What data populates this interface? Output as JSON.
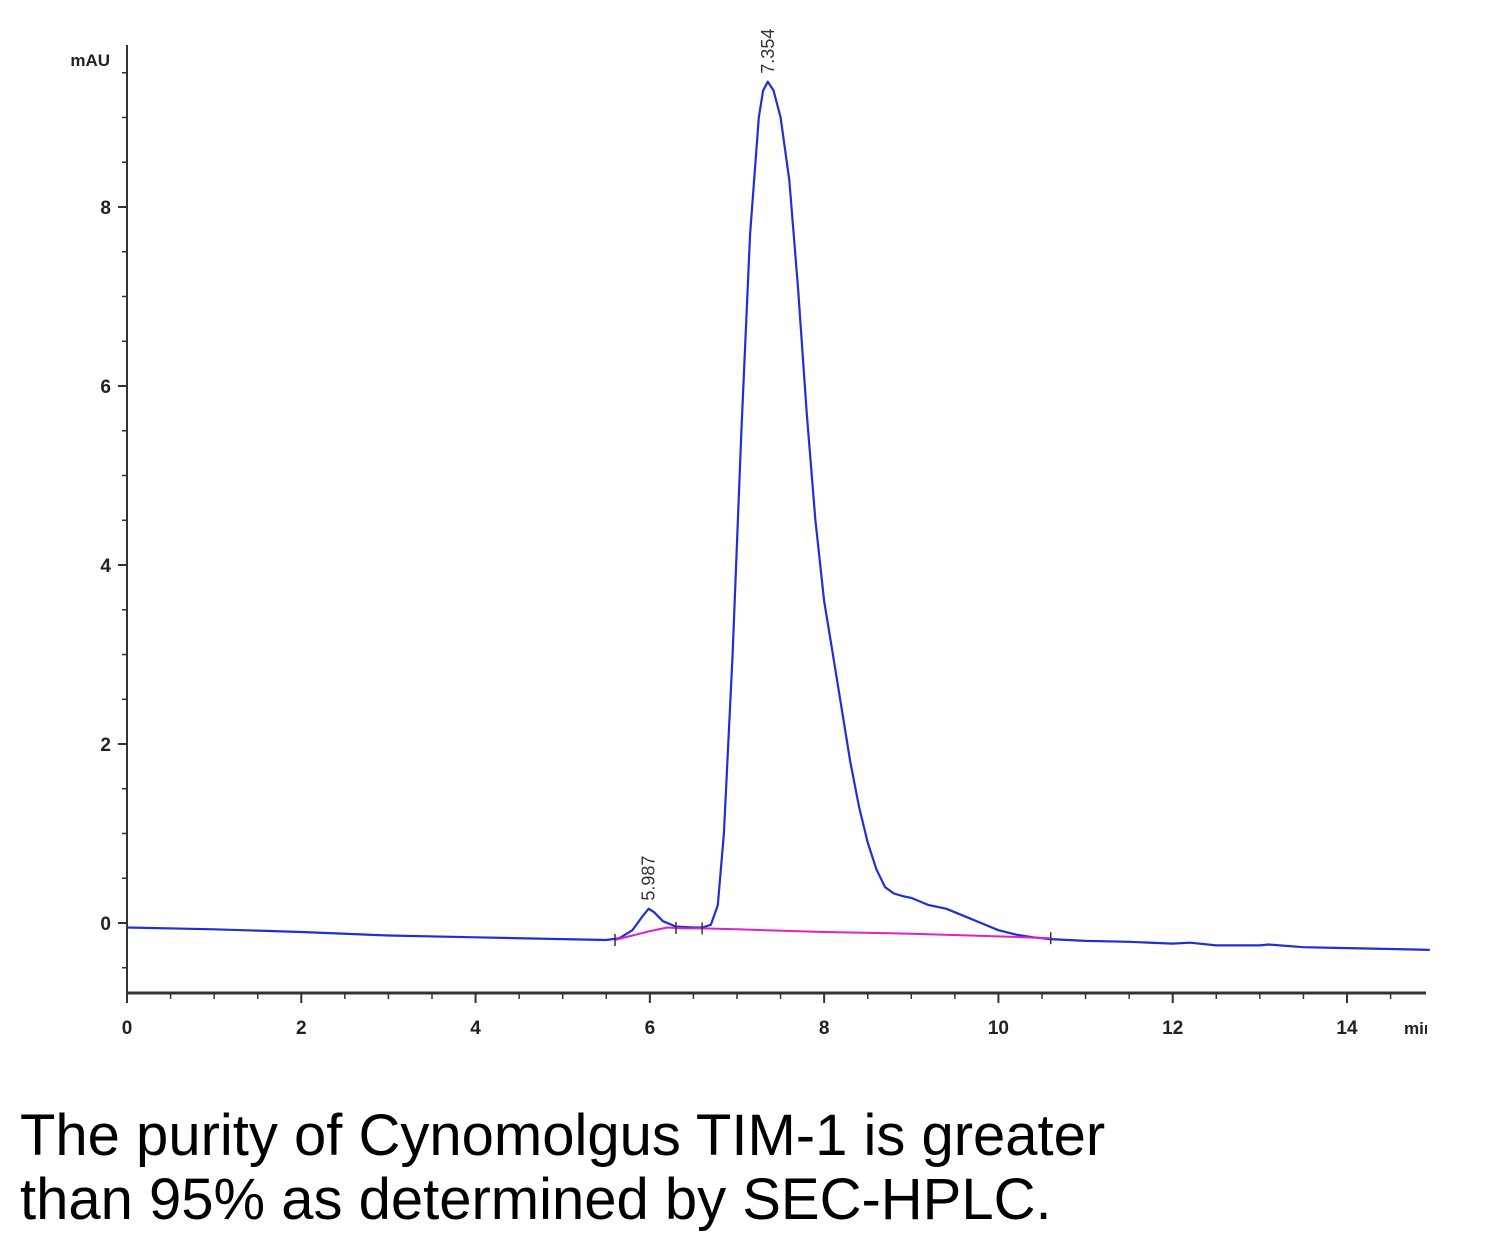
{
  "chart_data": {
    "type": "line",
    "xlabel": "min",
    "ylabel": "mAU",
    "xlim": [
      0,
      14.95
    ],
    "ylim": [
      -0.8,
      9.7
    ],
    "x_ticks": [
      "0",
      "2",
      "4",
      "6",
      "8",
      "10",
      "12",
      "14"
    ],
    "y_ticks": [
      "0",
      "2",
      "4",
      "6",
      "8"
    ],
    "grid": false,
    "series": [
      {
        "color": "#1f2fd6",
        "x": [
          0,
          1,
          2,
          3,
          4,
          5,
          5.5,
          5.65,
          5.8,
          5.92,
          5.987,
          6.05,
          6.15,
          6.3,
          6.5,
          6.6,
          6.7,
          6.78,
          6.85,
          6.95,
          7.05,
          7.15,
          7.25,
          7.3,
          7.354,
          7.42,
          7.5,
          7.6,
          7.7,
          7.8,
          7.9,
          8.0,
          8.1,
          8.2,
          8.3,
          8.4,
          8.5,
          8.6,
          8.7,
          8.8,
          8.9,
          9.0,
          9.2,
          9.4,
          9.6,
          9.8,
          10.0,
          10.2,
          10.4,
          10.6,
          11.0,
          11.5,
          12.0,
          12.2,
          12.5,
          13.0,
          13.1,
          13.5,
          14.0,
          14.5,
          14.95
        ],
        "y": [
          -0.05,
          -0.07,
          -0.1,
          -0.14,
          -0.16,
          -0.18,
          -0.19,
          -0.17,
          -0.08,
          0.08,
          0.16,
          0.12,
          0.02,
          -0.04,
          -0.05,
          -0.05,
          -0.02,
          0.2,
          1.0,
          3.0,
          5.5,
          7.7,
          9.0,
          9.3,
          9.4,
          9.3,
          9.0,
          8.3,
          7.1,
          5.7,
          4.5,
          3.6,
          3.0,
          2.4,
          1.8,
          1.3,
          0.9,
          0.6,
          0.4,
          0.33,
          0.3,
          0.28,
          0.2,
          0.16,
          0.08,
          0.0,
          -0.08,
          -0.13,
          -0.16,
          -0.18,
          -0.2,
          -0.21,
          -0.23,
          -0.22,
          -0.25,
          -0.25,
          -0.24,
          -0.27,
          -0.28,
          -0.29,
          -0.3
        ]
      },
      {
        "color": "#e020c8",
        "x": [
          5.6,
          5.8,
          6.0,
          6.2,
          6.4,
          6.6,
          7.0,
          8.0,
          9.0,
          10.0,
          10.6
        ],
        "y": [
          -0.19,
          -0.14,
          -0.09,
          -0.05,
          -0.06,
          -0.06,
          -0.07,
          -0.1,
          -0.12,
          -0.15,
          -0.17
        ]
      }
    ],
    "peak_labels": [
      {
        "x": 5.987,
        "y": 0.16,
        "text": "5.987"
      },
      {
        "x": 7.354,
        "y": 9.4,
        "text": "7.354"
      }
    ],
    "integration_marks": [
      5.6,
      6.3,
      6.6,
      10.6
    ]
  },
  "caption": {
    "line1": "The purity of Cynomolgus TIM-1 is greater",
    "line2": "than 95% as determined by SEC-HPLC."
  }
}
